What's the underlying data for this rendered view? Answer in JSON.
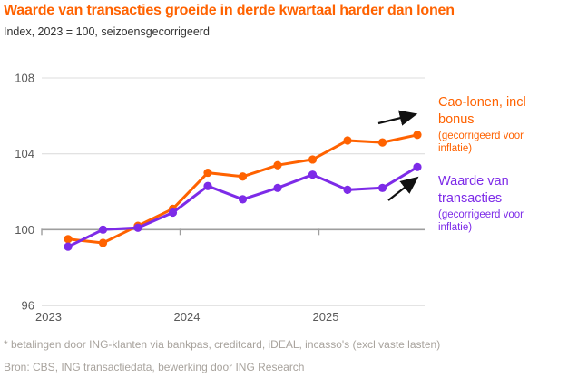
{
  "page": {
    "title": "Waarde van transacties groeide in derde kwartaal harder dan lonen",
    "subtitle": "Index, 2023 = 100, seizoensgecorrigeerd",
    "footnote": "* betalingen door ING-klanten via bankpas, creditcard, iDEAL, incasso's (excl vaste lasten)",
    "source": "Bron: CBS, ING transactiedata, bewerking door ING Research"
  },
  "colors": {
    "accent_orange": "#FF6200",
    "accent_purple": "#7D2BE8",
    "axis_text": "#595959",
    "gridline": "#DEDEDE",
    "baseline_96": "#C8C8C8",
    "axis_line_100": "#9E9E9E",
    "footer_text": "#A8A39D",
    "arrow": "#111111"
  },
  "annotations": {
    "cao": {
      "label": "Cao-lonen, incl bonus",
      "sub": "(gecorrigeerd voor inflatie)"
    },
    "waarde": {
      "label": "Waarde van transacties",
      "sub": "(gecorrigeerd voor inflatie)"
    }
  },
  "chart_data": {
    "type": "line",
    "title": "Waarde van transacties groeide in derde kwartaal harder dan lonen",
    "subtitle": "Index, 2023 = 100, seizoensgecorrigeerd",
    "xlabel": "",
    "ylabel": "",
    "categories": [
      "2023 Q1",
      "2023 Q2",
      "2023 Q3",
      "2023 Q4",
      "2024 Q1",
      "2024 Q2",
      "2024 Q3",
      "2024 Q4",
      "2025 Q1",
      "2025 Q2",
      "2025 Q3"
    ],
    "x_year_ticks": [
      "2023",
      "2024",
      "2025"
    ],
    "y_ticks": [
      96,
      100,
      104,
      108
    ],
    "ylim": [
      96,
      108
    ],
    "grid": "horizontal",
    "legend_position": "right-annotations",
    "series": [
      {
        "name": "Cao-lonen, incl bonus (gecorrigeerd voor inflatie)",
        "color": "#FF6200",
        "values": [
          99.5,
          99.3,
          100.2,
          101.1,
          103.0,
          102.8,
          103.4,
          103.7,
          104.7,
          104.6,
          105.0
        ]
      },
      {
        "name": "Waarde van transacties (gecorrigeerd voor inflatie)",
        "color": "#7D2BE8",
        "values": [
          99.1,
          100.0,
          100.1,
          100.9,
          102.3,
          101.6,
          102.2,
          102.9,
          102.1,
          102.2,
          103.3
        ]
      }
    ],
    "trend_arrows": 2
  }
}
